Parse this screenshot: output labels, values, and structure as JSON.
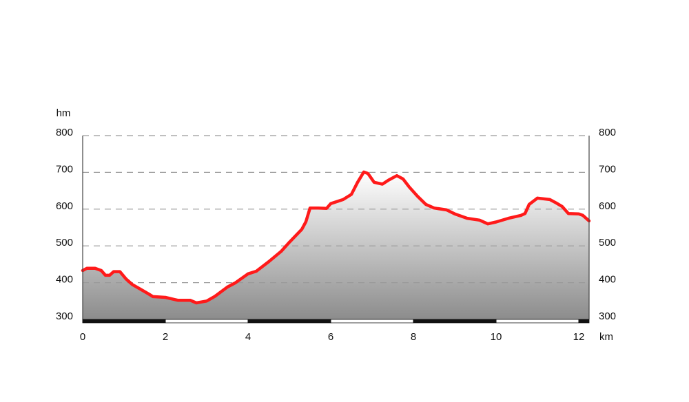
{
  "chart_data": {
    "type": "area-line",
    "y_axis_label": "hm",
    "x_axis_label": "km",
    "xlim": [
      0,
      12.25
    ],
    "xticks": [
      0,
      2,
      4,
      6,
      8,
      10,
      12
    ],
    "ylim": [
      300,
      800
    ],
    "yticks": [
      300,
      400,
      500,
      600,
      700,
      800
    ],
    "grid": true,
    "series": [
      {
        "name": "elevation",
        "color": "#ff1a1a",
        "x": [
          0,
          0.1,
          0.3,
          0.45,
          0.55,
          0.65,
          0.75,
          0.9,
          1.05,
          1.2,
          1.4,
          1.6,
          1.7,
          2.0,
          2.3,
          2.6,
          2.75,
          3.0,
          3.2,
          3.5,
          3.7,
          4.0,
          4.2,
          4.5,
          4.8,
          5.0,
          5.3,
          5.4,
          5.5,
          5.7,
          5.9,
          6.0,
          6.3,
          6.5,
          6.65,
          6.8,
          6.9,
          7.05,
          7.25,
          7.4,
          7.6,
          7.75,
          7.9,
          8.1,
          8.3,
          8.5,
          8.8,
          9.0,
          9.3,
          9.6,
          9.8,
          10.0,
          10.3,
          10.6,
          10.7,
          10.8,
          11.0,
          11.3,
          11.45,
          11.6,
          11.75,
          12.0,
          12.1,
          12.25
        ],
        "values": [
          433,
          439,
          439,
          433,
          420,
          420,
          430,
          430,
          410,
          395,
          382,
          369,
          362,
          360,
          352,
          352,
          345,
          350,
          363,
          388,
          400,
          424,
          431,
          457,
          485,
          510,
          545,
          566,
          603,
          603,
          602,
          615,
          626,
          640,
          673,
          701,
          697,
          673,
          668,
          679,
          691,
          682,
          660,
          635,
          613,
          603,
          598,
          587,
          575,
          570,
          560,
          565,
          575,
          583,
          588,
          613,
          630,
          626,
          617,
          607,
          588,
          587,
          583,
          568
        ]
      }
    ]
  }
}
